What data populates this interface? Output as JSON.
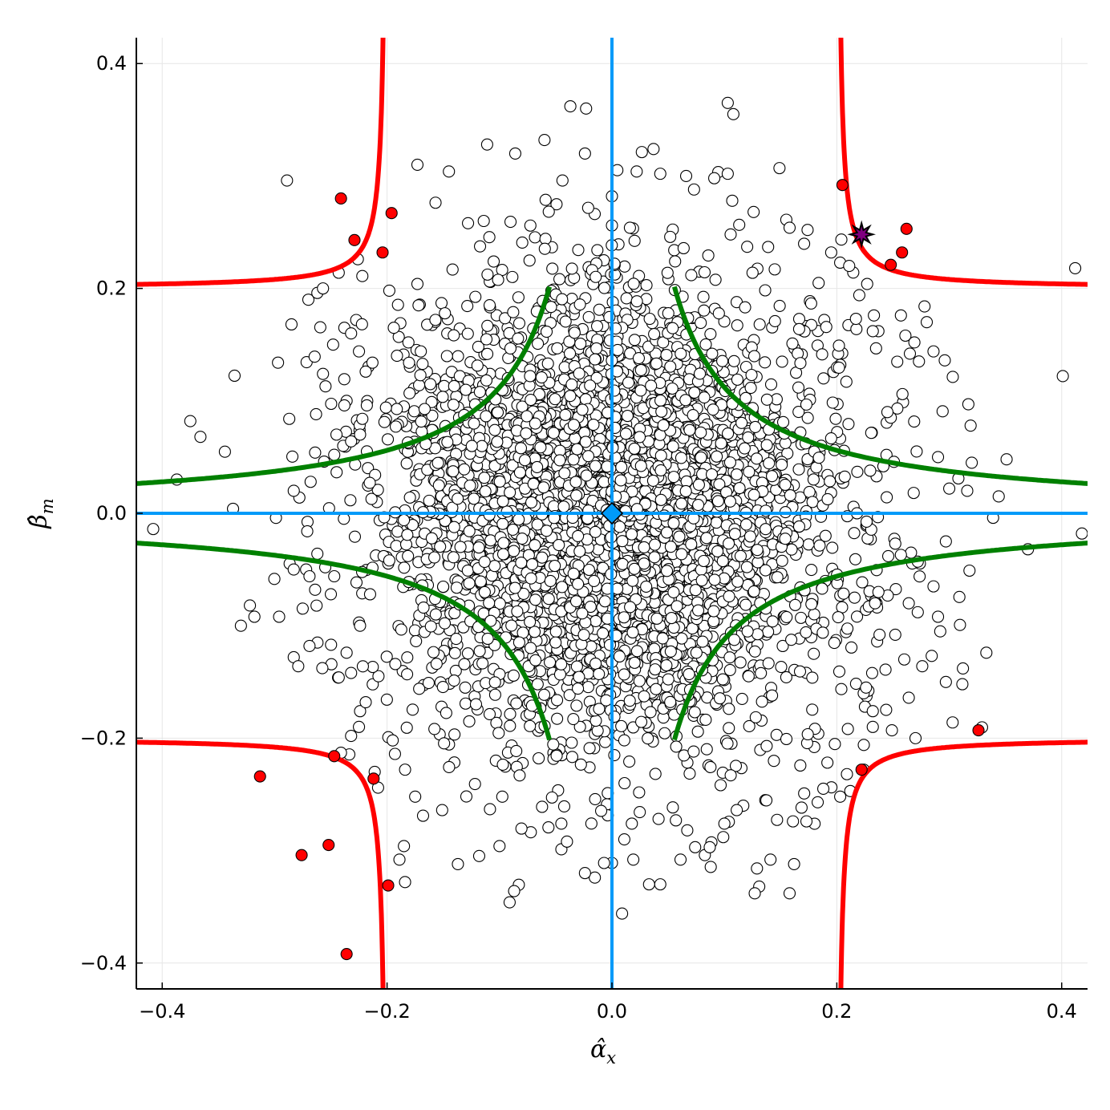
{
  "chart_data": {
    "type": "scatter",
    "title": "",
    "xlabel": "α̂",
    "xlabel_sub": "x",
    "ylabel": "β̂",
    "ylabel_sub": "m",
    "xlim": [
      -0.423,
      0.423
    ],
    "ylim": [
      -0.423,
      0.423
    ],
    "grid": true,
    "legend": "none",
    "x_ticks": [
      {
        "value": -0.4,
        "label": "−0.4"
      },
      {
        "value": -0.2,
        "label": "−0.2"
      },
      {
        "value": 0.0,
        "label": "0.0"
      },
      {
        "value": 0.2,
        "label": "0.2"
      },
      {
        "value": 0.4,
        "label": "0.4"
      }
    ],
    "y_ticks": [
      {
        "value": -0.4,
        "label": "−0.4"
      },
      {
        "value": -0.2,
        "label": "−0.2"
      },
      {
        "value": 0.0,
        "label": "0.0"
      },
      {
        "value": 0.2,
        "label": "0.2"
      },
      {
        "value": 0.4,
        "label": "0.4"
      }
    ],
    "colors": {
      "background": "#ffffff",
      "grid": "#e6e6e6",
      "axes": "#000000",
      "null_lines": "#009af9",
      "green_boundary": "#008000",
      "red_boundary": "#ff0000",
      "sample_fill": "#ffffff",
      "sample_edge": "#000000",
      "significant_fill": "#ff0000",
      "star_fill": "#800080",
      "diamond_fill": "#009af9"
    },
    "reference_lines": {
      "x": 0.0,
      "y": 0.0
    },
    "boundaries": [
      {
        "name": "",
        "color": "green",
        "product": 0.0112,
        "x_inner": 0.0556
      },
      {
        "name": "",
        "color": "red",
        "asymptote": 0.2,
        "k": 0.0008,
        "x_inner": 0.196
      }
    ],
    "cloud": {
      "n": 3900,
      "sd_x": 0.1,
      "sd_y": 0.1,
      "seed": 7
    },
    "outlier_points": [
      [
        -0.408,
        -0.014
      ],
      [
        -0.387,
        0.03
      ],
      [
        -0.375,
        0.082
      ],
      [
        -0.366,
        0.068
      ],
      [
        -0.337,
        0.004
      ],
      [
        -0.33,
        -0.1
      ],
      [
        -0.322,
        -0.082
      ],
      [
        -0.318,
        -0.092
      ],
      [
        -0.297,
        0.134
      ],
      [
        -0.296,
        -0.092
      ],
      [
        -0.287,
        0.084
      ],
      [
        -0.285,
        0.168
      ],
      [
        -0.283,
        -0.128
      ],
      [
        -0.279,
        -0.136
      ],
      [
        -0.27,
        0.19
      ],
      [
        -0.262,
        0.196
      ],
      [
        -0.257,
        0.2
      ],
      [
        -0.269,
        -0.118
      ],
      [
        -0.257,
        0.124
      ],
      [
        -0.248,
        0.15
      ],
      [
        -0.238,
        0.165
      ],
      [
        -0.232,
        0.16
      ],
      [
        -0.225,
        0.144
      ],
      [
        -0.219,
        0.126
      ],
      [
        -0.213,
        0.134
      ],
      [
        -0.201,
        0.094
      ],
      [
        -0.289,
        0.296
      ],
      [
        -0.243,
        0.214
      ],
      [
        -0.226,
        0.226
      ],
      [
        -0.222,
        0.211
      ],
      [
        -0.198,
        0.198
      ],
      [
        -0.194,
        0.165
      ],
      [
        -0.181,
        0.152
      ],
      [
        -0.173,
        0.31
      ],
      [
        -0.173,
        0.204
      ],
      [
        -0.172,
        0.185
      ],
      [
        -0.17,
        0.144
      ],
      [
        -0.157,
        0.172
      ],
      [
        -0.145,
        0.304
      ],
      [
        -0.128,
        0.258
      ],
      [
        -0.114,
        0.26
      ],
      [
        -0.111,
        0.328
      ],
      [
        -0.086,
        0.32
      ],
      [
        -0.06,
        0.332
      ],
      [
        -0.044,
        0.296
      ],
      [
        -0.037,
        0.362
      ],
      [
        -0.024,
        0.32
      ],
      [
        0.022,
        0.304
      ],
      [
        0.037,
        0.324
      ],
      [
        0.043,
        0.302
      ],
      [
        0.066,
        0.3
      ],
      [
        0.073,
        0.288
      ],
      [
        0.091,
        0.298
      ],
      [
        0.103,
        0.302
      ],
      [
        0.103,
        0.365
      ],
      [
        0.108,
        0.355
      ],
      [
        0.107,
        0.278
      ],
      [
        0.126,
        0.268
      ],
      [
        0.149,
        0.307
      ],
      [
        0.158,
        0.254
      ],
      [
        0.174,
        0.252
      ],
      [
        0.195,
        0.232
      ],
      [
        0.211,
        0.22
      ],
      [
        0.22,
        0.194
      ],
      [
        0.227,
        0.204
      ],
      [
        0.233,
        0.176
      ],
      [
        0.237,
        0.162
      ],
      [
        0.232,
        0.162
      ],
      [
        0.257,
        0.176
      ],
      [
        0.261,
        0.158
      ],
      [
        0.265,
        0.142
      ],
      [
        0.269,
        0.152
      ],
      [
        0.278,
        0.184
      ],
      [
        0.28,
        0.17
      ],
      [
        0.286,
        0.144
      ],
      [
        0.296,
        0.136
      ],
      [
        0.317,
        0.097
      ],
      [
        0.32,
        0.045
      ],
      [
        0.319,
        0.078
      ],
      [
        0.344,
        0.015
      ],
      [
        0.351,
        0.048
      ],
      [
        0.401,
        0.122
      ],
      [
        0.412,
        0.218
      ],
      [
        0.418,
        -0.018
      ],
      [
        0.37,
        -0.032
      ],
      [
        0.339,
        -0.004
      ],
      [
        0.316,
        0.02
      ],
      [
        0.3,
        0.022
      ],
      [
        0.297,
        -0.025
      ],
      [
        0.29,
        0.05
      ],
      [
        0.271,
        0.055
      ],
      [
        0.272,
        -0.043
      ],
      [
        0.266,
        -0.035
      ],
      [
        0.257,
        -0.037
      ],
      [
        0.252,
        -0.027
      ],
      [
        0.248,
        0.085
      ],
      [
        0.245,
        0.09
      ],
      [
        0.286,
        -0.065
      ],
      [
        0.29,
        -0.092
      ],
      [
        0.292,
        -0.105
      ],
      [
        0.272,
        -0.088
      ],
      [
        0.264,
        -0.08
      ],
      [
        0.237,
        -0.07
      ],
      [
        0.234,
        -0.08
      ],
      [
        0.226,
        -0.155
      ],
      [
        0.225,
        -0.172
      ],
      [
        0.232,
        -0.176
      ],
      [
        0.232,
        -0.19
      ],
      [
        0.238,
        -0.108
      ],
      [
        0.252,
        -0.108
      ],
      [
        0.26,
        -0.13
      ],
      [
        0.264,
        -0.164
      ],
      [
        0.276,
        -0.136
      ],
      [
        0.297,
        -0.15
      ],
      [
        0.303,
        -0.186
      ],
      [
        0.318,
        -0.051
      ],
      [
        0.333,
        -0.124
      ],
      [
        0.27,
        -0.2
      ],
      [
        0.249,
        -0.193
      ],
      [
        0.224,
        -0.206
      ],
      [
        0.224,
        -0.228
      ],
      [
        0.209,
        -0.232
      ],
      [
        0.212,
        -0.247
      ],
      [
        0.203,
        -0.252
      ],
      [
        0.188,
        -0.245
      ],
      [
        0.183,
        -0.257
      ],
      [
        0.173,
        -0.274
      ],
      [
        0.161,
        -0.274
      ],
      [
        0.162,
        -0.312
      ],
      [
        0.158,
        -0.338
      ],
      [
        0.131,
        -0.332
      ],
      [
        0.127,
        -0.338
      ],
      [
        0.141,
        -0.308
      ],
      [
        0.111,
        -0.264
      ],
      [
        0.1,
        -0.276
      ],
      [
        0.099,
        -0.288
      ],
      [
        0.087,
        -0.297
      ],
      [
        0.074,
        -0.297
      ],
      [
        0.067,
        -0.282
      ],
      [
        0.061,
        -0.308
      ],
      [
        0.043,
        -0.33
      ],
      [
        0.033,
        -0.33
      ],
      [
        0.019,
        -0.308
      ],
      [
        0.011,
        -0.29
      ],
      [
        0.009,
        -0.356
      ],
      [
        0.0,
        -0.311
      ],
      [
        -0.007,
        -0.311
      ],
      [
        -0.024,
        -0.32
      ],
      [
        -0.04,
        -0.292
      ],
      [
        -0.045,
        -0.276
      ],
      [
        -0.087,
        -0.336
      ],
      [
        -0.091,
        -0.346
      ],
      [
        -0.1,
        -0.296
      ],
      [
        -0.137,
        -0.312
      ],
      [
        -0.151,
        -0.264
      ],
      [
        -0.168,
        -0.269
      ],
      [
        -0.184,
        -0.328
      ],
      [
        -0.189,
        -0.308
      ],
      [
        -0.185,
        -0.296
      ],
      [
        -0.175,
        -0.252
      ],
      [
        -0.184,
        -0.228
      ],
      [
        -0.193,
        -0.214
      ],
      [
        -0.195,
        -0.202
      ],
      [
        -0.208,
        -0.244
      ],
      [
        -0.211,
        -0.23
      ],
      [
        -0.225,
        -0.19
      ],
      [
        -0.232,
        -0.198
      ],
      [
        -0.241,
        -0.213
      ],
      [
        -0.243,
        -0.146
      ],
      [
        -0.236,
        -0.124
      ],
      [
        -0.232,
        -0.142
      ],
      [
        -0.224,
        -0.176
      ],
      [
        -0.219,
        -0.168
      ],
      [
        -0.25,
        -0.072
      ],
      [
        -0.247,
        -0.056
      ],
      [
        -0.255,
        -0.048
      ],
      [
        -0.264,
        -0.068
      ],
      [
        -0.272,
        -0.05
      ],
      [
        -0.283,
        -0.05
      ],
      [
        -0.269,
        -0.056
      ],
      [
        -0.262,
        -0.036
      ],
      [
        -0.271,
        -0.016
      ],
      [
        -0.278,
        0.014
      ],
      [
        -0.283,
        0.02
      ],
      [
        -0.268,
        0.028
      ],
      [
        -0.264,
        0.054
      ],
      [
        -0.256,
        0.046
      ],
      [
        -0.247,
        0.052
      ],
      [
        -0.239,
        0.06
      ],
      [
        -0.232,
        0.064
      ],
      [
        -0.224,
        0.07
      ],
      [
        -0.245,
        0.07
      ],
      [
        -0.222,
        0.084
      ],
      [
        -0.236,
        0.1
      ],
      [
        -0.238,
        0.096
      ],
      [
        -0.218,
        0.096
      ],
      [
        0.0,
        0.256
      ],
      [
        0.0,
        0.282
      ],
      [
        -0.023,
        0.36
      ],
      [
        0.016,
        0.254
      ]
    ],
    "significant_points": [
      [
        -0.241,
        0.28
      ],
      [
        -0.229,
        0.243
      ],
      [
        -0.204,
        0.232
      ],
      [
        -0.196,
        0.267
      ],
      [
        0.205,
        0.292
      ],
      [
        0.248,
        0.221
      ],
      [
        0.258,
        0.232
      ],
      [
        0.262,
        0.253
      ],
      [
        -0.313,
        -0.234
      ],
      [
        -0.276,
        -0.304
      ],
      [
        -0.252,
        -0.295
      ],
      [
        -0.247,
        -0.216
      ],
      [
        -0.236,
        -0.392
      ],
      [
        -0.212,
        -0.236
      ],
      [
        -0.199,
        -0.331
      ],
      [
        0.222,
        -0.228
      ],
      [
        0.326,
        -0.193
      ]
    ],
    "highlight_star": [
      0.222,
      0.248
    ],
    "center_marker": [
      0.0,
      0.0
    ]
  }
}
